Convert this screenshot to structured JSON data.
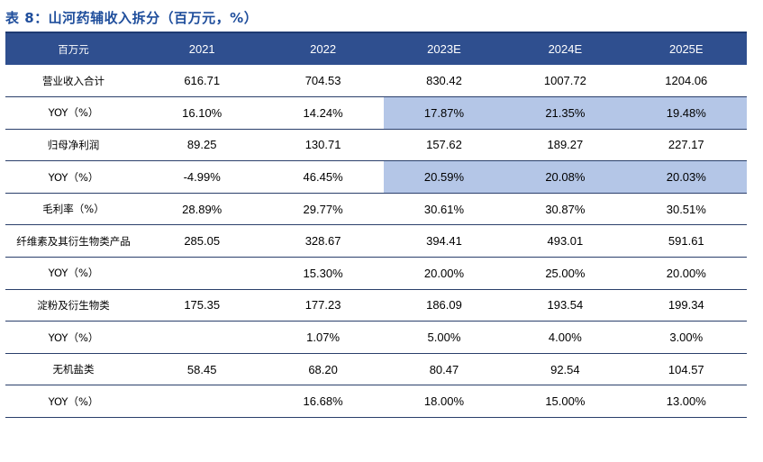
{
  "title": "表 8：山河药辅收入拆分（百万元，%）",
  "header": [
    "百万元",
    "2021",
    "2022",
    "2023E",
    "2024E",
    "2025E"
  ],
  "rows": [
    {
      "label": "营业收入合计",
      "values": [
        "616.71",
        "704.53",
        "830.42",
        "1007.72",
        "1204.06"
      ],
      "highlight": [
        false,
        false,
        false,
        false,
        false
      ]
    },
    {
      "label": "YOY（%）",
      "values": [
        "16.10%",
        "14.24%",
        "17.87%",
        "21.35%",
        "19.48%"
      ],
      "highlight": [
        false,
        false,
        true,
        true,
        true
      ]
    },
    {
      "label": "归母净利润",
      "values": [
        "89.25",
        "130.71",
        "157.62",
        "189.27",
        "227.17"
      ],
      "highlight": [
        false,
        false,
        false,
        false,
        false
      ]
    },
    {
      "label": "YOY（%）",
      "values": [
        "-4.99%",
        "46.45%",
        "20.59%",
        "20.08%",
        "20.03%"
      ],
      "highlight": [
        false,
        false,
        true,
        true,
        true
      ]
    },
    {
      "label": "毛利率（%）",
      "values": [
        "28.89%",
        "29.77%",
        "30.61%",
        "30.87%",
        "30.51%"
      ],
      "highlight": [
        false,
        false,
        false,
        false,
        false
      ]
    },
    {
      "label": "纤维素及其衍生物类产品",
      "values": [
        "285.05",
        "328.67",
        "394.41",
        "493.01",
        "591.61"
      ],
      "highlight": [
        false,
        false,
        false,
        false,
        false
      ]
    },
    {
      "label": "YOY（%）",
      "values": [
        "",
        "15.30%",
        "20.00%",
        "25.00%",
        "20.00%"
      ],
      "highlight": [
        false,
        false,
        false,
        false,
        false
      ]
    },
    {
      "label": "淀粉及衍生物类",
      "values": [
        "175.35",
        "177.23",
        "186.09",
        "193.54",
        "199.34"
      ],
      "highlight": [
        false,
        false,
        false,
        false,
        false
      ]
    },
    {
      "label": "YOY（%）",
      "values": [
        "",
        "1.07%",
        "5.00%",
        "4.00%",
        "3.00%"
      ],
      "highlight": [
        false,
        false,
        false,
        false,
        false
      ]
    },
    {
      "label": "无机盐类",
      "values": [
        "58.45",
        "68.20",
        "80.47",
        "92.54",
        "104.57"
      ],
      "highlight": [
        false,
        false,
        false,
        false,
        false
      ]
    },
    {
      "label": "YOY（%）",
      "values": [
        "",
        "16.68%",
        "18.00%",
        "15.00%",
        "13.00%"
      ],
      "highlight": [
        false,
        false,
        false,
        false,
        false
      ]
    }
  ],
  "colors": {
    "header_bg": "#2f4f8f",
    "highlight": "#b4c6e7",
    "title": "#1f4e9c"
  }
}
